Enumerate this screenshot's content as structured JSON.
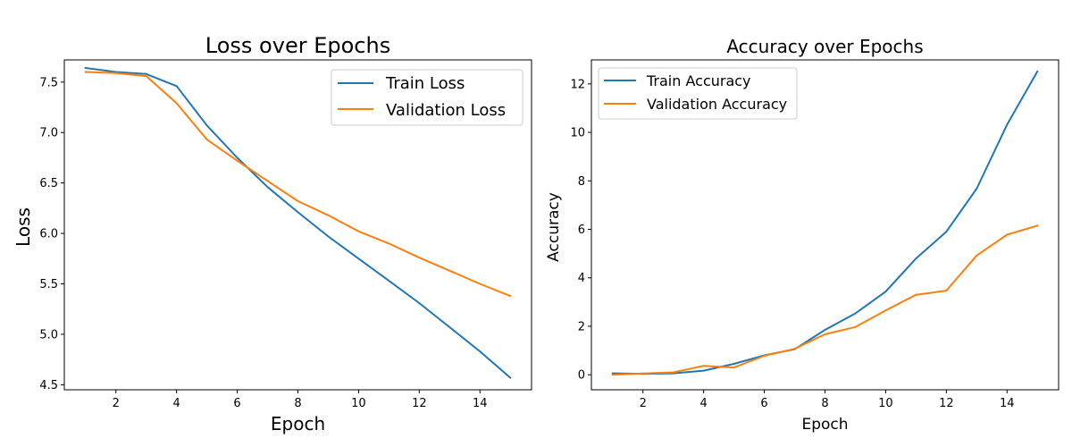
{
  "chart_data": [
    {
      "type": "line",
      "title": "Loss over Epochs",
      "xlabel": "Epoch",
      "ylabel": "Loss",
      "xlim": [
        0.3,
        15.7
      ],
      "ylim": [
        4.45,
        7.72
      ],
      "xticks": [
        2,
        4,
        6,
        8,
        10,
        12,
        14
      ],
      "yticks": [
        4.5,
        5.0,
        5.5,
        6.0,
        6.5,
        7.0,
        7.5
      ],
      "ytick_labels": [
        "4.5",
        "5.0",
        "5.5",
        "6.0",
        "6.5",
        "7.0",
        "7.5"
      ],
      "legend_position": "upper-right",
      "x": [
        1,
        2,
        3,
        4,
        5,
        6,
        7,
        8,
        9,
        10,
        11,
        12,
        13,
        14,
        15
      ],
      "series": [
        {
          "name": "Train Loss",
          "color": "#1f77b4",
          "values": [
            7.64,
            7.6,
            7.58,
            7.46,
            7.07,
            6.75,
            6.46,
            6.21,
            5.97,
            5.75,
            5.53,
            5.31,
            5.07,
            4.83,
            4.57
          ]
        },
        {
          "name": "Validation Loss",
          "color": "#ff7f0e",
          "values": [
            7.6,
            7.59,
            7.56,
            7.29,
            6.93,
            6.72,
            6.52,
            6.32,
            6.18,
            6.02,
            5.9,
            5.76,
            5.63,
            5.5,
            5.38
          ]
        }
      ]
    },
    {
      "type": "line",
      "title": "Accuracy over Epochs",
      "xlabel": "Epoch",
      "ylabel": "Accuracy",
      "xlim": [
        0.3,
        15.7
      ],
      "ylim": [
        -0.62,
        12.99
      ],
      "xticks": [
        2,
        4,
        6,
        8,
        10,
        12,
        14
      ],
      "yticks": [
        0,
        2,
        4,
        6,
        8,
        10,
        12
      ],
      "ytick_labels": [
        "0",
        "2",
        "4",
        "6",
        "8",
        "10",
        "12"
      ],
      "legend_position": "upper-left",
      "x": [
        1,
        2,
        3,
        4,
        5,
        6,
        7,
        8,
        9,
        10,
        11,
        12,
        13,
        14,
        15
      ],
      "series": [
        {
          "name": "Train Accuracy",
          "color": "#1f77b4",
          "values": [
            0.06,
            0.04,
            0.06,
            0.17,
            0.45,
            0.8,
            1.05,
            1.85,
            2.53,
            3.43,
            4.8,
            5.9,
            7.68,
            10.32,
            12.51
          ]
        },
        {
          "name": "Validation Accuracy",
          "color": "#ff7f0e",
          "values": [
            0.0,
            0.05,
            0.1,
            0.37,
            0.3,
            0.78,
            1.07,
            1.67,
            1.97,
            2.65,
            3.3,
            3.47,
            4.92,
            5.78,
            6.15
          ]
        }
      ]
    }
  ]
}
